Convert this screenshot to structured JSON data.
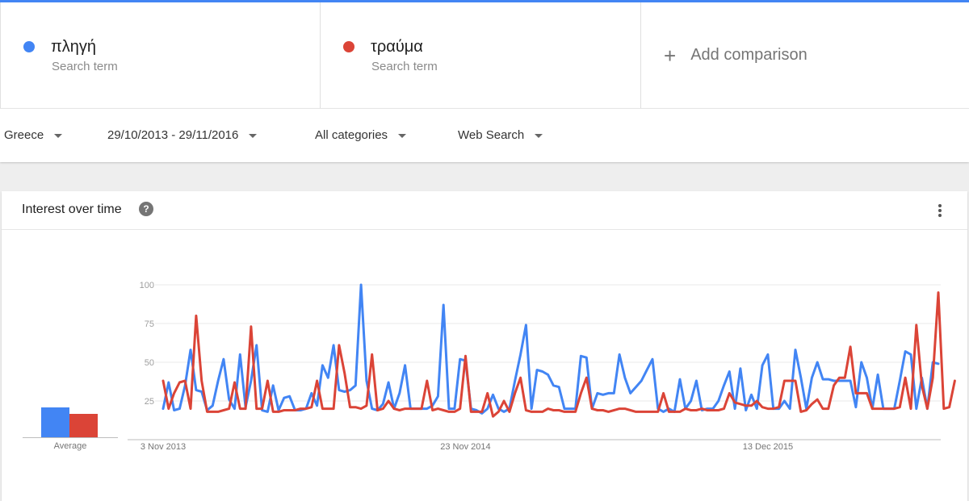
{
  "terms": [
    {
      "name": "πληγή",
      "subtitle": "Search term",
      "color": "#4285f4"
    },
    {
      "name": "τραύμα",
      "subtitle": "Search term",
      "color": "#db4437"
    }
  ],
  "add_comparison": {
    "icon": "plus-icon",
    "label": "Add comparison"
  },
  "filters": {
    "region": "Greece",
    "date_range": "29/10/2013 - 29/11/2016",
    "category": "All categories",
    "search_type": "Web Search",
    "dropdown_icon": "caret-down-icon"
  },
  "card": {
    "title": "Interest over time",
    "help_icon": "?",
    "menu_icon": "more-vert-icon"
  },
  "averages": {
    "label": "Average"
  },
  "chart_data": {
    "type": "line",
    "title": "",
    "xlabel": "",
    "ylabel": "",
    "ylim": [
      0,
      100
    ],
    "ytick_labels": [
      "25",
      "50",
      "75",
      "100"
    ],
    "ytick_values": [
      25,
      50,
      75,
      100
    ],
    "xtick_labels": [
      "3 Nov 2013",
      "23 Nov 2014",
      "13 Dec 2015"
    ],
    "xtick_index": [
      0,
      55,
      110
    ],
    "grid": true,
    "series": [
      {
        "name": "πληγή",
        "color": "#4285f4",
        "average": 32,
        "values": [
          20,
          37,
          19,
          20,
          35,
          58,
          32,
          31,
          19,
          22,
          38,
          52,
          26,
          20,
          55,
          21,
          38,
          61,
          19,
          18,
          35,
          19,
          27,
          28,
          19,
          19,
          20,
          30,
          22,
          48,
          40,
          61,
          32,
          31,
          32,
          35,
          100,
          38,
          20,
          19,
          23,
          37,
          20,
          30,
          48,
          20,
          20,
          20,
          20,
          22,
          28,
          87,
          20,
          20,
          52,
          51,
          20,
          19,
          17,
          20,
          29,
          20,
          18,
          20,
          38,
          55,
          74,
          20,
          45,
          44,
          42,
          35,
          34,
          20,
          20,
          20,
          54,
          53,
          20,
          30,
          29,
          30,
          30,
          55,
          40,
          30,
          34,
          38,
          45,
          52,
          20,
          18,
          20,
          18,
          39,
          20,
          25,
          38,
          19,
          20,
          20,
          25,
          35,
          44,
          20,
          46,
          19,
          29,
          20,
          48,
          55,
          20,
          20,
          25,
          20,
          58,
          40,
          20,
          40,
          50,
          39,
          39,
          38,
          38,
          38,
          38,
          21,
          50,
          40,
          20,
          42,
          20,
          20,
          20,
          38,
          57,
          55,
          20,
          40,
          20,
          50,
          49
        ]
      },
      {
        "name": "τραύμα",
        "color": "#db4437",
        "average": 25,
        "values": [
          38,
          20,
          30,
          37,
          38,
          20,
          80,
          38,
          18,
          18,
          18,
          19,
          20,
          37,
          20,
          20,
          73,
          20,
          20,
          38,
          18,
          18,
          19,
          19,
          19,
          20,
          20,
          21,
          38,
          20,
          20,
          20,
          61,
          43,
          21,
          21,
          20,
          22,
          55,
          19,
          20,
          25,
          20,
          19,
          20,
          20,
          20,
          20,
          38,
          19,
          20,
          19,
          18,
          18,
          20,
          54,
          18,
          18,
          18,
          30,
          15,
          18,
          25,
          18,
          30,
          40,
          19,
          18,
          18,
          18,
          20,
          19,
          19,
          18,
          18,
          18,
          30,
          40,
          20,
          19,
          19,
          18,
          19,
          20,
          20,
          19,
          18,
          18,
          18,
          18,
          18,
          30,
          18,
          18,
          18,
          20,
          19,
          19,
          20,
          19,
          19,
          19,
          20,
          30,
          24,
          23,
          22,
          22,
          25,
          21,
          20,
          20,
          21,
          38,
          38,
          38,
          18,
          19,
          23,
          26,
          20,
          20,
          35,
          40,
          40,
          60,
          30,
          30,
          30,
          20,
          20,
          20,
          20,
          20,
          21,
          40,
          20,
          74,
          35,
          20,
          40,
          95,
          20,
          21,
          38
        ]
      }
    ]
  }
}
